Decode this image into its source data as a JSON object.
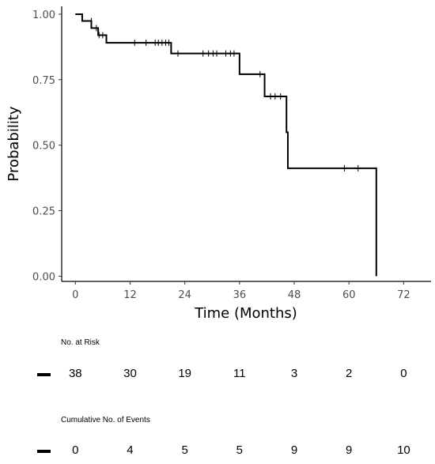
{
  "chart_data": {
    "type": "line",
    "subtype": "kaplan-meier-step",
    "xlabel": "Time (Months)",
    "ylabel": "Probability",
    "xlim": [
      -3,
      78
    ],
    "ylim": [
      -0.02,
      1.03
    ],
    "xticks": [
      0,
      12,
      24,
      36,
      48,
      60,
      72
    ],
    "yticks": [
      0.0,
      0.25,
      0.5,
      0.75,
      1.0
    ],
    "ytick_labels": [
      "0.00",
      "0.25",
      "0.50",
      "0.75",
      "1.00"
    ],
    "grid": false,
    "legend": "none",
    "series": [
      {
        "color": "#000000",
        "steps": [
          {
            "x": 0,
            "y": 1.0
          },
          {
            "x": 1.5,
            "y": 0.974
          },
          {
            "x": 3.5,
            "y": 0.947
          },
          {
            "x": 5.0,
            "y": 0.92
          },
          {
            "x": 6.8,
            "y": 0.891
          },
          {
            "x": 21.0,
            "y": 0.85
          },
          {
            "x": 36.0,
            "y": 0.771
          },
          {
            "x": 41.5,
            "y": 0.686
          },
          {
            "x": 46.3,
            "y": 0.549
          },
          {
            "x": 46.6,
            "y": 0.412
          },
          {
            "x": 66.0,
            "y": 0.0
          }
        ],
        "censored": [
          {
            "x": 3.5,
            "y": 0.974
          },
          {
            "x": 4.6,
            "y": 0.947
          },
          {
            "x": 5.2,
            "y": 0.92
          },
          {
            "x": 6.0,
            "y": 0.92
          },
          {
            "x": 13.0,
            "y": 0.891
          },
          {
            "x": 15.5,
            "y": 0.891
          },
          {
            "x": 17.5,
            "y": 0.891
          },
          {
            "x": 18.2,
            "y": 0.891
          },
          {
            "x": 19.0,
            "y": 0.891
          },
          {
            "x": 19.8,
            "y": 0.891
          },
          {
            "x": 20.5,
            "y": 0.891
          },
          {
            "x": 22.5,
            "y": 0.85
          },
          {
            "x": 28.0,
            "y": 0.85
          },
          {
            "x": 29.2,
            "y": 0.85
          },
          {
            "x": 30.2,
            "y": 0.85
          },
          {
            "x": 31.0,
            "y": 0.85
          },
          {
            "x": 33.0,
            "y": 0.85
          },
          {
            "x": 34.0,
            "y": 0.85
          },
          {
            "x": 34.8,
            "y": 0.85
          },
          {
            "x": 40.5,
            "y": 0.771
          },
          {
            "x": 42.8,
            "y": 0.686
          },
          {
            "x": 43.8,
            "y": 0.686
          },
          {
            "x": 45.0,
            "y": 0.686
          },
          {
            "x": 59.0,
            "y": 0.412
          },
          {
            "x": 62.0,
            "y": 0.412
          }
        ]
      }
    ],
    "risk_table": {
      "at_risk_title": "No. at Risk",
      "at_risk": [
        "38",
        "30",
        "19",
        "11",
        "3",
        "2",
        "0"
      ],
      "events_title": "Cumulative No. of Events",
      "events": [
        "0",
        "4",
        "5",
        "5",
        "9",
        "9",
        "10"
      ]
    }
  }
}
